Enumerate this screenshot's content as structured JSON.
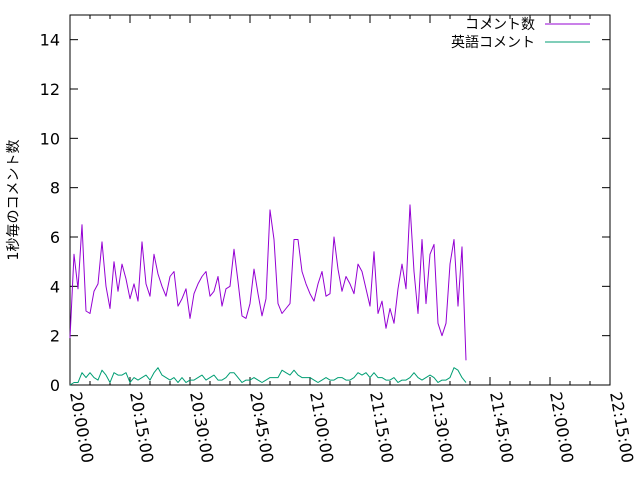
{
  "colors": {
    "comments": "#9400d3",
    "english": "#009e73",
    "axis": "#000000",
    "background": "#ffffff"
  },
  "chart_data": {
    "type": "line",
    "title": "",
    "xlabel": "",
    "ylabel": "1秒毎のコメント数",
    "xlim": [
      "20:00:00",
      "22:15:00"
    ],
    "ylim": [
      0,
      15
    ],
    "x_ticks": [
      "20:00:00",
      "20:15:00",
      "20:30:00",
      "20:45:00",
      "21:00:00",
      "21:15:00",
      "21:30:00",
      "21:45:00",
      "22:00:00",
      "22:15:00"
    ],
    "y_ticks": [
      "0",
      "2",
      "4",
      "6",
      "8",
      "10",
      "12",
      "14"
    ],
    "grid": false,
    "legend_position": "top-right",
    "x_interval_minutes": 1,
    "x_start": "20:00:00",
    "series": [
      {
        "name": "コメント数",
        "color": "#9400d3",
        "values": [
          1.9,
          5.3,
          3.9,
          6.5,
          3.0,
          2.9,
          3.8,
          4.1,
          5.8,
          4.0,
          3.1,
          5.0,
          3.8,
          4.9,
          4.3,
          3.5,
          4.1,
          3.4,
          5.8,
          4.1,
          3.6,
          5.3,
          4.5,
          4.0,
          3.6,
          4.4,
          4.6,
          3.2,
          3.5,
          3.9,
          2.7,
          3.7,
          4.1,
          4.4,
          4.6,
          3.6,
          3.8,
          4.4,
          3.2,
          3.9,
          4.0,
          5.5,
          4.2,
          2.8,
          2.7,
          3.3,
          4.7,
          3.7,
          2.8,
          3.5,
          7.1,
          5.9,
          3.3,
          2.9,
          3.1,
          3.3,
          5.9,
          5.9,
          4.6,
          4.1,
          3.7,
          3.4,
          4.1,
          4.6,
          3.6,
          3.7,
          6.0,
          4.7,
          3.8,
          4.4,
          4.1,
          3.7,
          4.9,
          4.6,
          3.9,
          3.2,
          5.4,
          2.9,
          3.4,
          2.3,
          3.1,
          2.5,
          3.9,
          4.9,
          3.9,
          7.3,
          4.6,
          2.9,
          5.9,
          3.3,
          5.3,
          5.7,
          2.5,
          2.0,
          2.5,
          4.9,
          5.9,
          3.2,
          5.6,
          1.0
        ]
      },
      {
        "name": "英語コメント",
        "color": "#009e73",
        "values": [
          0.0,
          0.1,
          0.1,
          0.5,
          0.3,
          0.5,
          0.3,
          0.2,
          0.6,
          0.4,
          0.1,
          0.5,
          0.4,
          0.4,
          0.5,
          0.1,
          0.3,
          0.2,
          0.3,
          0.4,
          0.2,
          0.5,
          0.7,
          0.4,
          0.3,
          0.2,
          0.3,
          0.1,
          0.3,
          0.1,
          0.2,
          0.2,
          0.3,
          0.4,
          0.2,
          0.3,
          0.4,
          0.2,
          0.2,
          0.3,
          0.5,
          0.5,
          0.3,
          0.1,
          0.2,
          0.2,
          0.3,
          0.2,
          0.1,
          0.2,
          0.3,
          0.3,
          0.3,
          0.6,
          0.5,
          0.4,
          0.6,
          0.4,
          0.3,
          0.3,
          0.3,
          0.2,
          0.1,
          0.2,
          0.3,
          0.2,
          0.2,
          0.3,
          0.3,
          0.2,
          0.2,
          0.3,
          0.5,
          0.4,
          0.5,
          0.3,
          0.5,
          0.3,
          0.3,
          0.2,
          0.2,
          0.3,
          0.1,
          0.2,
          0.2,
          0.3,
          0.5,
          0.3,
          0.2,
          0.3,
          0.4,
          0.3,
          0.1,
          0.2,
          0.2,
          0.3,
          0.7,
          0.6,
          0.3,
          0.1
        ]
      }
    ]
  }
}
